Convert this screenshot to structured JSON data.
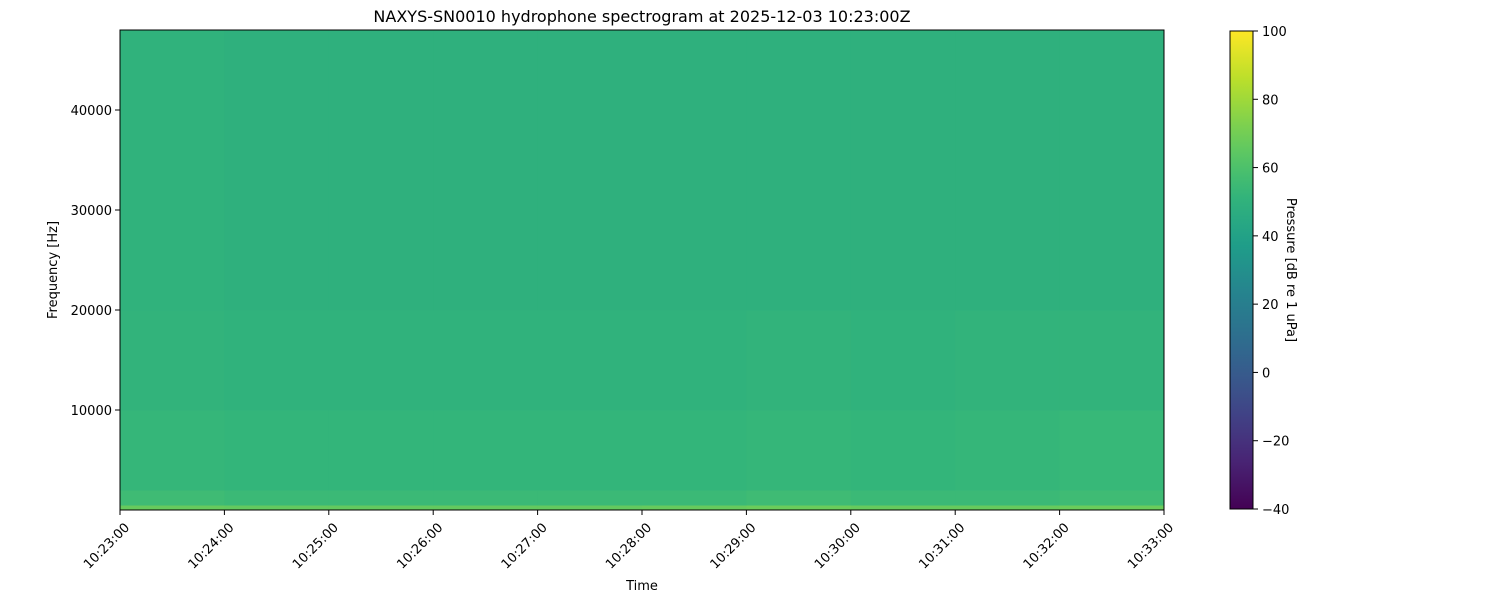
{
  "chart_data": {
    "type": "heatmap",
    "title": "NAXYS-SN0010 hydrophone spectrogram at 2025-12-03 10:23:00Z",
    "xlabel": "Time",
    "ylabel": "Frequency [Hz]",
    "colorbar_label": "Pressure [dB re 1 uPa]",
    "colormap": "viridis",
    "x_ticks": [
      "10:23:00",
      "10:24:00",
      "10:25:00",
      "10:26:00",
      "10:27:00",
      "10:28:00",
      "10:29:00",
      "10:30:00",
      "10:31:00",
      "10:32:00",
      "10:33:00"
    ],
    "y_ticks": [
      10000,
      20000,
      30000,
      40000
    ],
    "y_tick_labels": [
      "10000",
      "20000",
      "30000",
      "40000"
    ],
    "ylim": [
      0,
      48000
    ],
    "clim": [
      -40,
      100
    ],
    "colorbar_ticks": [
      100,
      80,
      60,
      40,
      20,
      0,
      -20,
      -40
    ],
    "colorbar_tick_labels": [
      "100",
      "80",
      "60",
      "40",
      "20",
      "0",
      "−20",
      "−40"
    ],
    "time_segments": [
      "10:23",
      "10:24",
      "10:25",
      "10:26",
      "10:27",
      "10:28",
      "10:29",
      "10:30",
      "10:31",
      "10:32"
    ],
    "frequency_bands_hz": [
      [
        0,
        500
      ],
      [
        500,
        2000
      ],
      [
        2000,
        10000
      ],
      [
        10000,
        20000
      ],
      [
        20000,
        48000
      ]
    ],
    "values_db": [
      [
        67,
        66,
        66,
        66,
        66,
        67,
        68,
        67,
        67,
        68
      ],
      [
        56,
        55,
        55,
        55,
        55,
        55,
        56,
        55,
        55,
        56
      ],
      [
        53,
        52,
        52,
        52,
        52,
        52,
        53,
        52,
        53,
        54
      ],
      [
        51,
        50,
        50,
        50,
        50,
        50,
        51,
        50,
        51,
        51
      ],
      [
        50,
        49,
        49,
        49,
        49,
        49,
        49,
        49,
        49,
        49
      ]
    ]
  }
}
